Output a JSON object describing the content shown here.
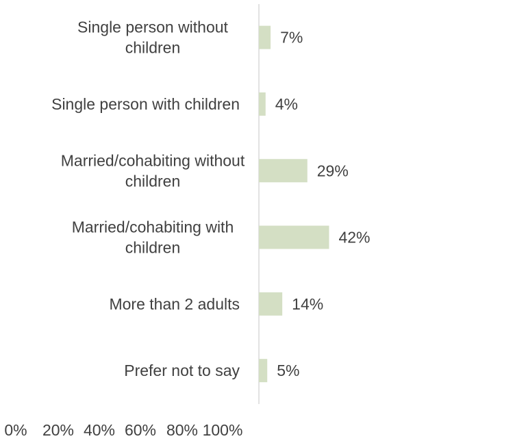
{
  "chart_data": {
    "type": "bar",
    "orientation": "horizontal",
    "categories": [
      [
        "Single person without",
        "children"
      ],
      [
        "Single person with children"
      ],
      [
        "Married/cohabiting without",
        "children"
      ],
      [
        "Married/cohabiting with",
        "children"
      ],
      [
        "More than 2 adults"
      ],
      [
        "Prefer not to say"
      ]
    ],
    "values": [
      7,
      4,
      29,
      42,
      14,
      5
    ],
    "value_labels": [
      "7%",
      "4%",
      "29%",
      "42%",
      "14%",
      "5%"
    ],
    "xlim": [
      0,
      100
    ],
    "x_ticks": [
      "0%",
      "20%",
      "40%",
      "60%",
      "80%",
      "100%"
    ],
    "bar_color": "#d4dfc4",
    "axis_color": "#d9d9d9",
    "text_color": "#404040",
    "grid": false,
    "legend": false
  }
}
